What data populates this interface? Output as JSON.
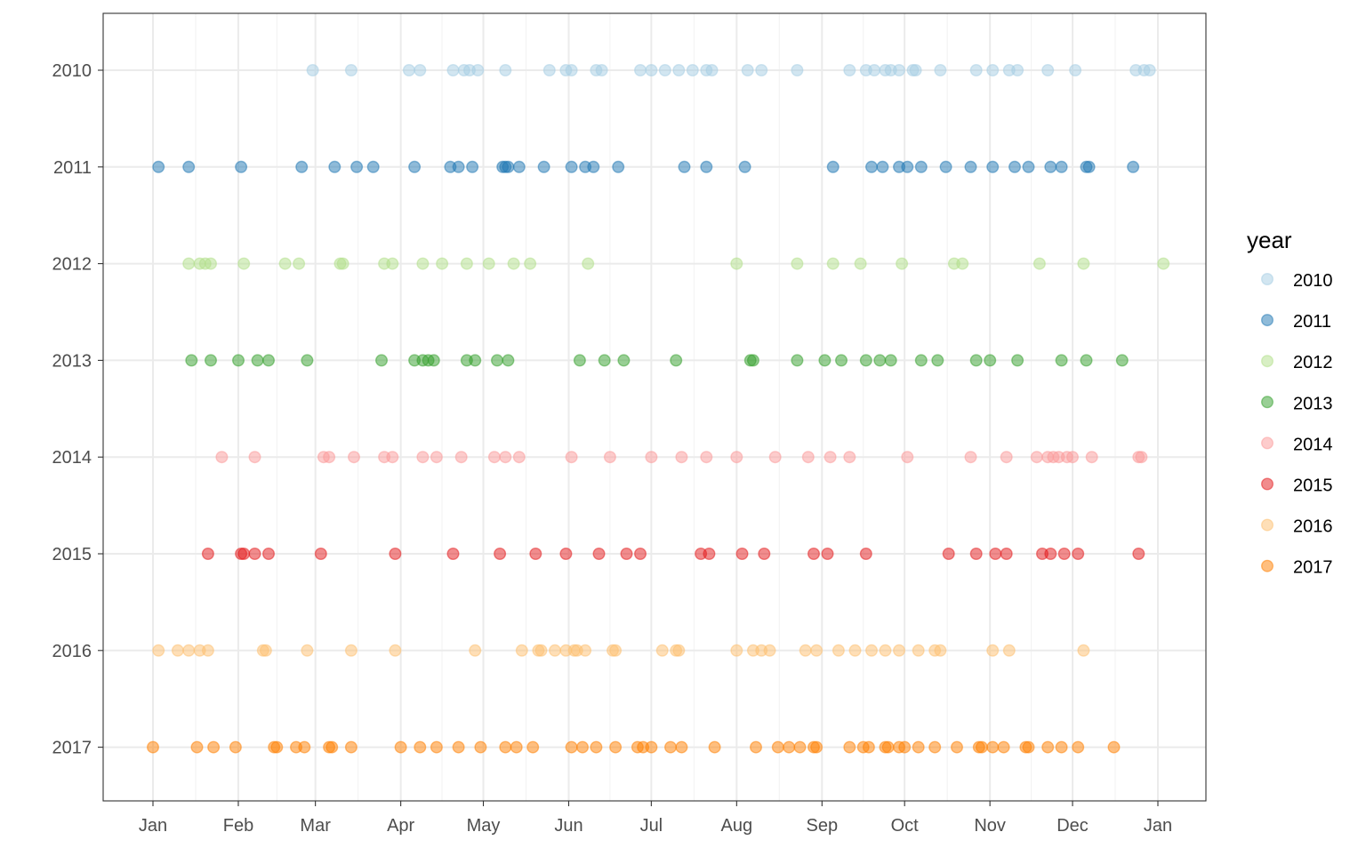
{
  "chart_data": {
    "type": "scatter",
    "xlabel": "",
    "ylabel": "",
    "x_axis": {
      "type": "date",
      "ticks": [
        "Jan",
        "Feb",
        "Mar",
        "Apr",
        "May",
        "Jun",
        "Jul",
        "Aug",
        "Sep",
        "Oct",
        "Nov",
        "Dec",
        "Jan"
      ],
      "range": [
        "Jan 1",
        "Jan 1 (next year)"
      ]
    },
    "y_axis": {
      "type": "categorical",
      "categories": [
        "2010",
        "2011",
        "2012",
        "2013",
        "2014",
        "2015",
        "2016",
        "2017"
      ],
      "order": "top-to-bottom"
    },
    "grid": true,
    "legend": {
      "title": "year",
      "placement": "right",
      "entries": [
        "2010",
        "2011",
        "2012",
        "2013",
        "2014",
        "2015",
        "2016",
        "2017"
      ]
    },
    "point_opacity": 0.5,
    "colors": {
      "2010": "#a6cee3",
      "2011": "#1f78b4",
      "2012": "#b2df8a",
      "2013": "#33a02c",
      "2014": "#fb9a99",
      "2015": "#e31a1c",
      "2016": "#fdbf6f",
      "2017": "#ff7f00"
    },
    "series": [
      {
        "name": "2010",
        "x": [
          "Feb 28",
          "Mar 14",
          "Apr 4",
          "Apr 8",
          "Apr 20",
          "Apr 24",
          "Apr 26",
          "Apr 29",
          "May 9",
          "May 25",
          "May 31",
          "Jun 2",
          "Jun 11",
          "Jun 13",
          "Jun 27",
          "Jul 1",
          "Jul 6",
          "Jul 11",
          "Jul 16",
          "Jul 21",
          "Jul 23",
          "Aug 5",
          "Aug 10",
          "Aug 23",
          "Sep 11",
          "Sep 17",
          "Sep 20",
          "Sep 24",
          "Sep 26",
          "Sep 29",
          "Oct 4",
          "Oct 5",
          "Oct 14",
          "Oct 27",
          "Nov 2",
          "Nov 8",
          "Nov 11",
          "Nov 22",
          "Dec 2",
          "Dec 24",
          "Dec 27",
          "Dec 29"
        ]
      },
      {
        "name": "2011",
        "x": [
          "Jan 3",
          "Jan 14",
          "Feb 2",
          "Feb 24",
          "Mar 8",
          "Mar 16",
          "Mar 22",
          "Apr 6",
          "Apr 19",
          "Apr 22",
          "Apr 27",
          "May 8",
          "May 9",
          "May 10",
          "May 14",
          "May 23",
          "Jun 2",
          "Jun 7",
          "Jun 10",
          "Jun 19",
          "Jul 13",
          "Jul 21",
          "Aug 4",
          "Sep 5",
          "Sep 19",
          "Sep 23",
          "Sep 29",
          "Oct 2",
          "Oct 7",
          "Oct 16",
          "Oct 25",
          "Nov 2",
          "Nov 10",
          "Nov 15",
          "Nov 23",
          "Nov 27",
          "Dec 6",
          "Dec 7",
          "Dec 23"
        ]
      },
      {
        "name": "2012",
        "x": [
          "Jan 14",
          "Jan 18",
          "Jan 20",
          "Jan 22",
          "Feb 3",
          "Feb 18",
          "Feb 23",
          "Mar 10",
          "Mar 11",
          "Mar 26",
          "Mar 29",
          "Apr 9",
          "Apr 16",
          "Apr 25",
          "May 3",
          "May 12",
          "May 18",
          "Jun 8",
          "Aug 1",
          "Aug 23",
          "Sep 5",
          "Sep 15",
          "Sep 30",
          "Oct 19",
          "Oct 22",
          "Nov 19",
          "Dec 5",
          "Jan 3"
        ]
      },
      {
        "name": "2013",
        "x": [
          "Jan 15",
          "Jan 22",
          "Feb 1",
          "Feb 8",
          "Feb 12",
          "Feb 26",
          "Mar 25",
          "Apr 6",
          "Apr 9",
          "Apr 11",
          "Apr 13",
          "Apr 25",
          "Apr 28",
          "May 6",
          "May 10",
          "Jun 5",
          "Jun 14",
          "Jun 21",
          "Jul 10",
          "Aug 6",
          "Aug 7",
          "Aug 23",
          "Sep 2",
          "Sep 8",
          "Sep 17",
          "Sep 22",
          "Sep 26",
          "Oct 7",
          "Oct 13",
          "Oct 27",
          "Nov 1",
          "Nov 11",
          "Nov 27",
          "Dec 6",
          "Dec 19"
        ]
      },
      {
        "name": "2014",
        "x": [
          "Jan 26",
          "Feb 7",
          "Mar 4",
          "Mar 6",
          "Mar 15",
          "Mar 26",
          "Mar 29",
          "Apr 9",
          "Apr 14",
          "Apr 23",
          "May 5",
          "May 9",
          "May 14",
          "Jun 2",
          "Jun 16",
          "Jul 1",
          "Jul 12",
          "Jul 21",
          "Aug 1",
          "Aug 15",
          "Aug 27",
          "Sep 4",
          "Sep 11",
          "Oct 2",
          "Oct 25",
          "Nov 7",
          "Nov 18",
          "Nov 22",
          "Nov 24",
          "Nov 26",
          "Nov 29",
          "Dec 1",
          "Dec 8",
          "Dec 25",
          "Dec 26"
        ]
      },
      {
        "name": "2015",
        "x": [
          "Jan 21",
          "Feb 2",
          "Feb 3",
          "Feb 7",
          "Feb 12",
          "Mar 3",
          "Mar 30",
          "Apr 20",
          "May 7",
          "May 20",
          "May 31",
          "Jun 12",
          "Jun 22",
          "Jun 27",
          "Jul 19",
          "Jul 22",
          "Aug 3",
          "Aug 11",
          "Aug 29",
          "Sep 3",
          "Sep 17",
          "Oct 17",
          "Oct 27",
          "Nov 3",
          "Nov 7",
          "Nov 20",
          "Nov 23",
          "Nov 28",
          "Dec 3",
          "Dec 25"
        ]
      },
      {
        "name": "2016",
        "x": [
          "Jan 3",
          "Jan 10",
          "Jan 14",
          "Jan 18",
          "Jan 21",
          "Feb 10",
          "Feb 11",
          "Feb 26",
          "Mar 14",
          "Mar 30",
          "Apr 28",
          "May 15",
          "May 21",
          "May 22",
          "May 27",
          "May 31",
          "Jun 3",
          "Jun 4",
          "Jun 7",
          "Jun 17",
          "Jun 18",
          "Jul 5",
          "Jul 10",
          "Jul 11",
          "Aug 1",
          "Aug 7",
          "Aug 10",
          "Aug 13",
          "Aug 26",
          "Aug 30",
          "Sep 7",
          "Sep 13",
          "Sep 19",
          "Sep 24",
          "Sep 29",
          "Oct 6",
          "Oct 12",
          "Oct 14",
          "Nov 2",
          "Nov 8",
          "Dec 5"
        ]
      },
      {
        "name": "2017",
        "x": [
          "Jan 1",
          "Jan 17",
          "Jan 23",
          "Jan 31",
          "Feb 14",
          "Feb 15",
          "Feb 22",
          "Feb 25",
          "Mar 6",
          "Mar 7",
          "Mar 14",
          "Apr 1",
          "Apr 8",
          "Apr 14",
          "Apr 22",
          "Apr 30",
          "May 9",
          "May 13",
          "May 19",
          "Jun 2",
          "Jun 6",
          "Jun 11",
          "Jun 18",
          "Jun 26",
          "Jun 28",
          "Jul 1",
          "Jul 8",
          "Jul 12",
          "Jul 24",
          "Aug 8",
          "Aug 16",
          "Aug 20",
          "Aug 24",
          "Aug 29",
          "Aug 30",
          "Sep 11",
          "Sep 16",
          "Sep 18",
          "Sep 24",
          "Sep 25",
          "Sep 29",
          "Oct 1",
          "Oct 6",
          "Oct 12",
          "Oct 20",
          "Oct 28",
          "Oct 29",
          "Nov 2",
          "Nov 6",
          "Nov 14",
          "Nov 15",
          "Nov 22",
          "Nov 27",
          "Dec 3",
          "Dec 16"
        ]
      }
    ]
  }
}
